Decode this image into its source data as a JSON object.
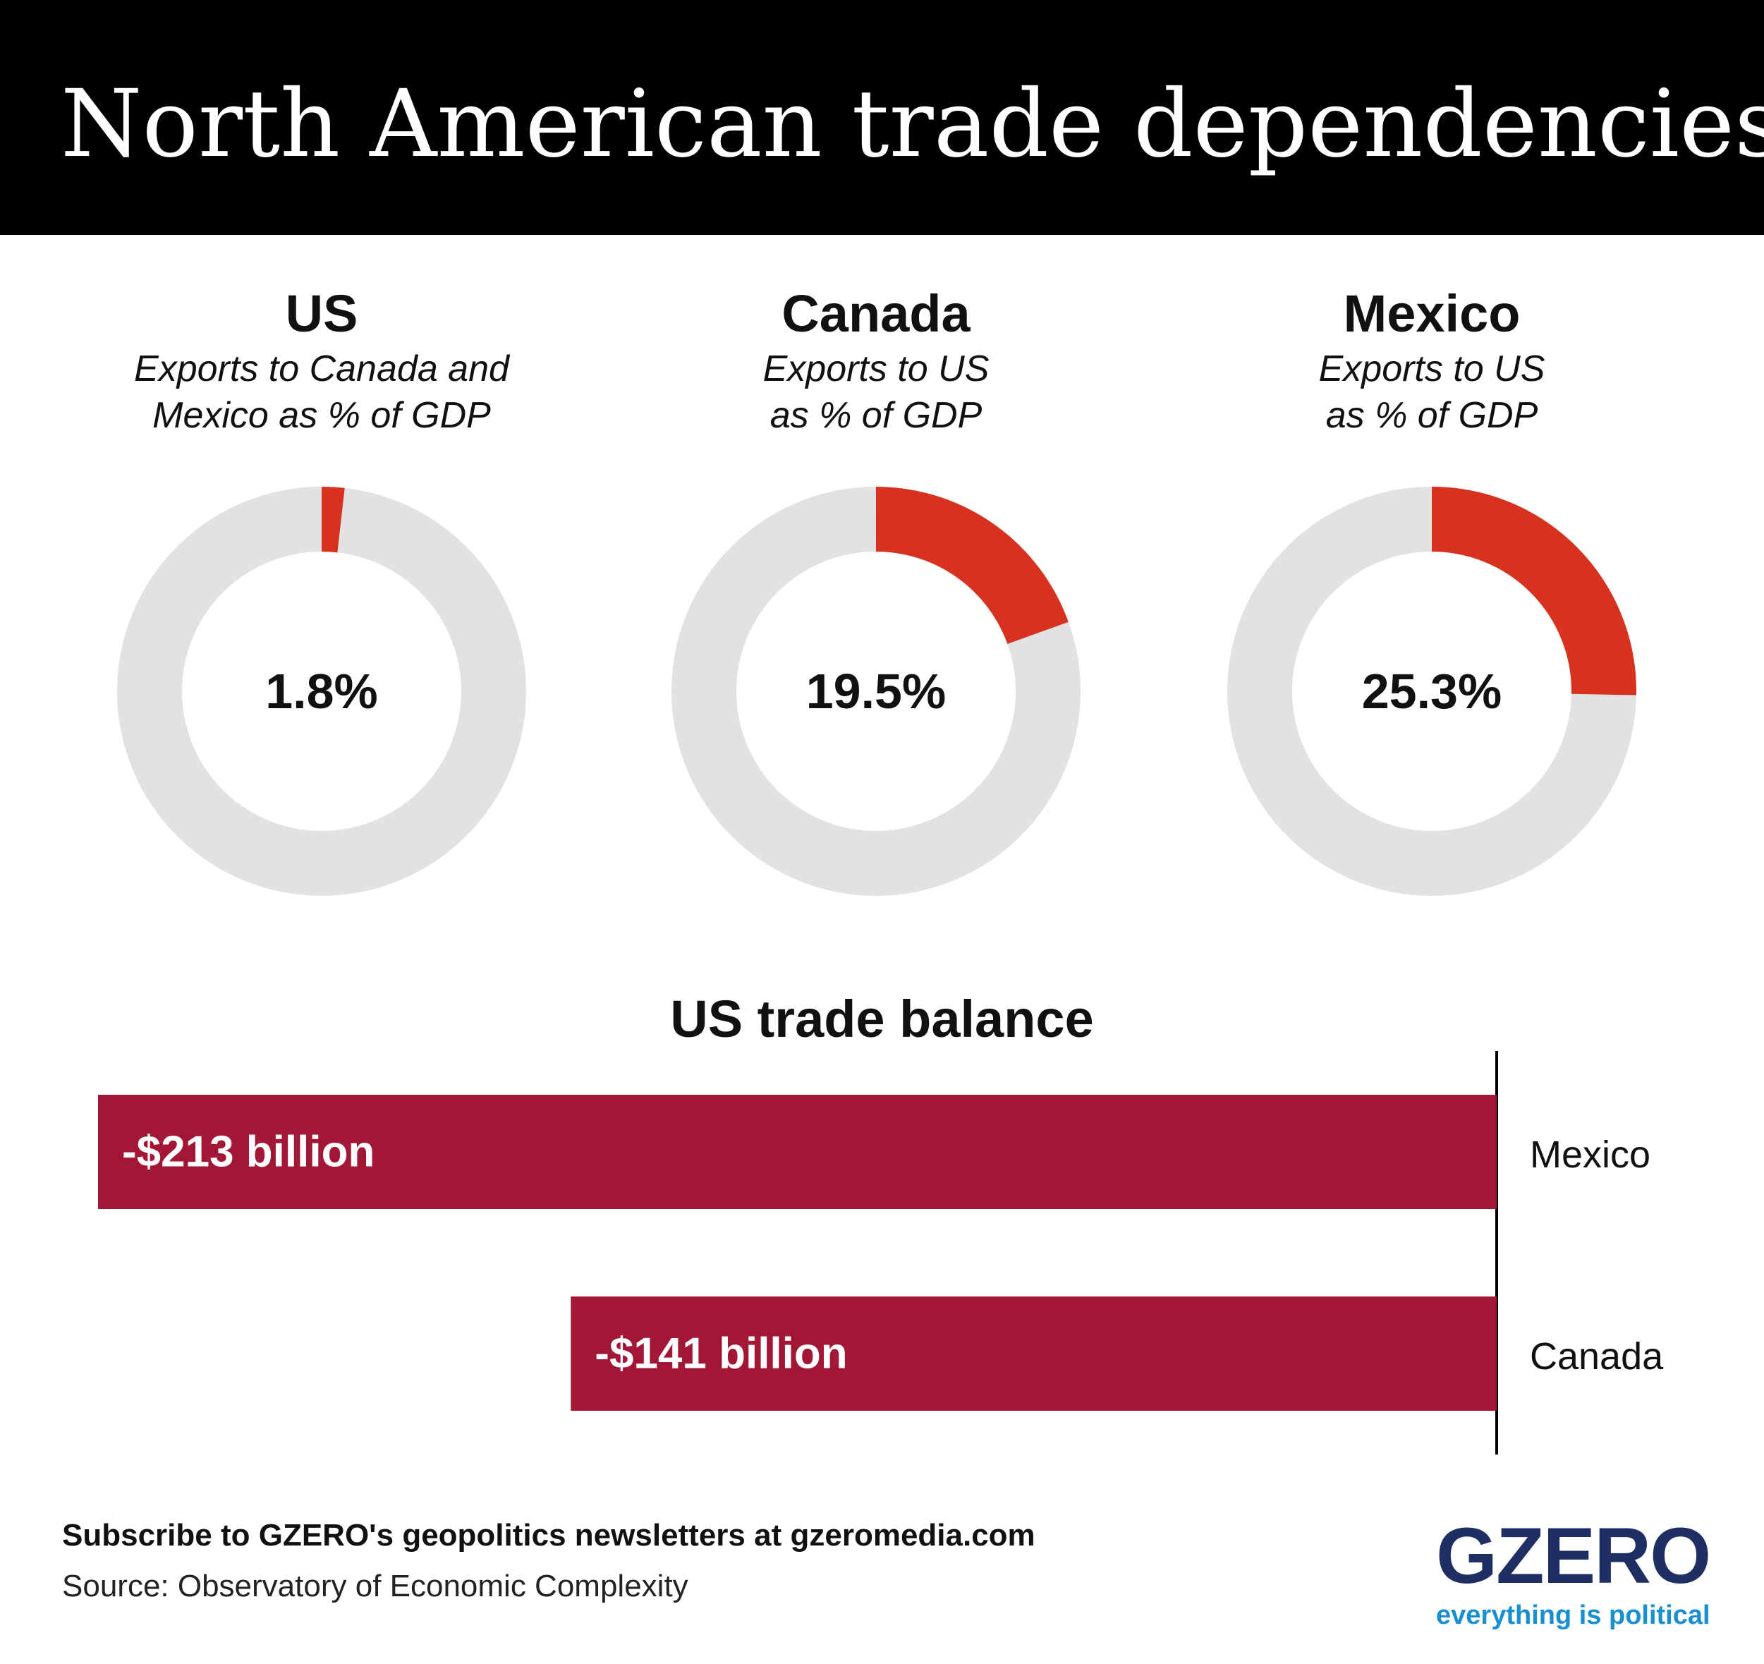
{
  "header": {
    "title": "North American trade dependencies"
  },
  "donuts": [
    {
      "country": "US",
      "subtitle": "Exports to Canada and\nMexico as % of GDP",
      "value": 1.8,
      "label": "1.8%"
    },
    {
      "country": "Canada",
      "subtitle": "Exports to US\nas % of GDP",
      "value": 19.5,
      "label": "19.5%"
    },
    {
      "country": "Mexico",
      "subtitle": "Exports to US\nas % of GDP",
      "value": 25.3,
      "label": "25.3%"
    }
  ],
  "bar_section": {
    "title": "US trade balance"
  },
  "chart_data": [
    {
      "type": "pie",
      "title": "US",
      "subtitle": "Exports to Canada and Mexico as % of GDP",
      "values": [
        1.8,
        98.2
      ],
      "center_label": "1.8%"
    },
    {
      "type": "pie",
      "title": "Canada",
      "subtitle": "Exports to US as % of GDP",
      "values": [
        19.5,
        80.5
      ],
      "center_label": "19.5%"
    },
    {
      "type": "pie",
      "title": "Mexico",
      "subtitle": "Exports to US as % of GDP",
      "values": [
        25.3,
        74.7
      ],
      "center_label": "25.3%"
    },
    {
      "type": "bar",
      "orientation": "horizontal",
      "title": "US trade balance",
      "categories": [
        "Mexico",
        "Canada"
      ],
      "values": [
        -213,
        -141
      ],
      "unit": "billion USD",
      "data_labels": [
        "-$213 billion",
        "-$141 billion"
      ],
      "xlim": [
        -213,
        0
      ]
    }
  ],
  "colors": {
    "donut_value": "#d7321f",
    "donut_track": "#e2e2e2",
    "bar": "#a21735",
    "header_bg": "#000000",
    "logo_navy": "#1f2f63",
    "logo_blue": "#1a8fd0"
  },
  "footer": {
    "cta": "Subscribe to GZERO's geopolitics newsletters at gzeromedia.com",
    "source": "Source: Observatory of Economic Complexity"
  },
  "logo": {
    "wordmark": "GZERO",
    "tagline": "everything is political"
  }
}
